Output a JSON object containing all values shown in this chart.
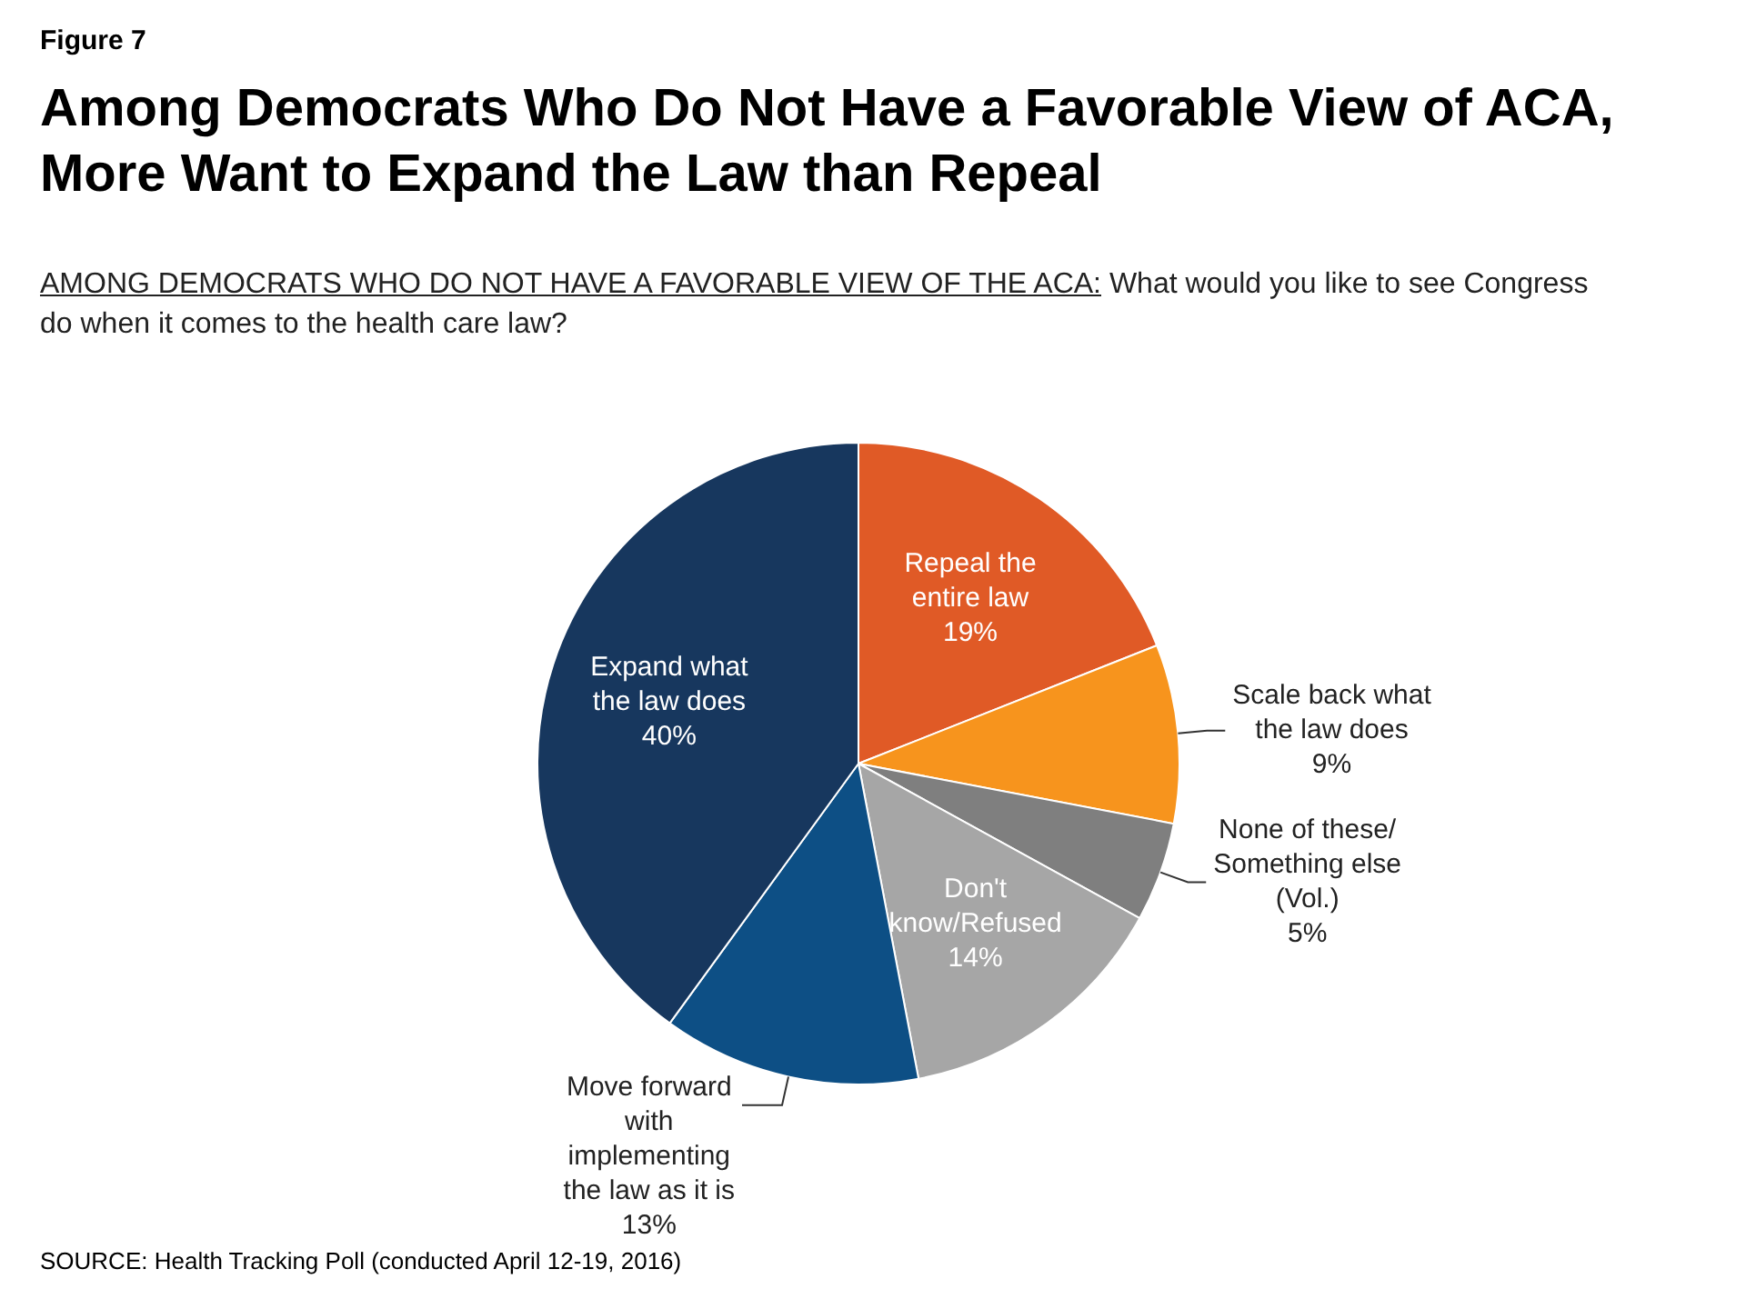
{
  "chart_data": {
    "type": "pie",
    "title": "Among Democrats Who Do Not Have a Favorable View of ACA, More Want to Expand the Law than Repeal",
    "subtitle": "AMONG DEMOCRATS WHO DO NOT HAVE A FAVORABLE VIEW OF THE ACA: What would you like to see Congress do when it comes to the health care law?",
    "categories": [
      "Repeal the entire law",
      "Scale back what the law does",
      "None of these/ Something else (Vol.)",
      "Don't know/Refused",
      "Move forward with implementing the law as it is",
      "Expand what the law does"
    ],
    "values": [
      19,
      9,
      5,
      14,
      13,
      40
    ],
    "value_labels": [
      "19%",
      "9%",
      "5%",
      "14%",
      "13%",
      "40%"
    ],
    "colors": [
      "#e05a26",
      "#f7941d",
      "#7f7f7f",
      "#a6a6a6",
      "#0d4f85",
      "#17375e"
    ],
    "legend": false,
    "annotations": [
      "Figure 7",
      "SOURCE: Health Tracking Poll (conducted April 12-19, 2016)"
    ]
  }
}
